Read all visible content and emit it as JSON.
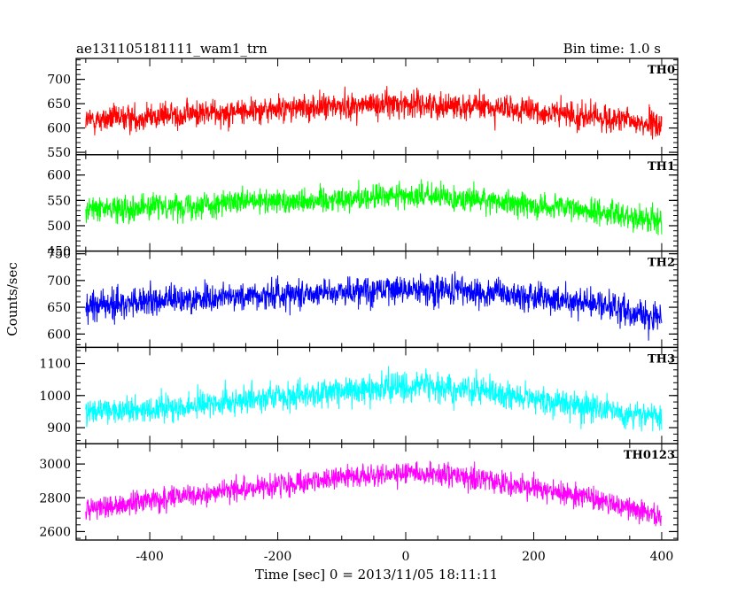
{
  "chart_data": {
    "type": "line",
    "title": "ae131105181111_wam1_trn",
    "subtitle": "Bin time: 1.0 s",
    "xlabel": "Time [sec] 0 = 2013/11/05 18:11:11",
    "ylabel": "Counts/sec",
    "xlim": [
      -515,
      425
    ],
    "x_ticks": [
      -400,
      -200,
      0,
      200,
      400
    ],
    "x_range_data": [
      -500,
      400
    ],
    "panels": [
      {
        "name": "TH0",
        "color": "#ff0000",
        "ylim": [
          545,
          743
        ],
        "y_ticks": [
          550,
          600,
          650,
          700
        ],
        "trend": {
          "x": [
            -500,
            -300,
            -100,
            0,
            100,
            300,
            400
          ],
          "y": [
            615,
            632,
            645,
            650,
            645,
            622,
            605
          ]
        },
        "noise": 35
      },
      {
        "name": "TH1",
        "color": "#00ff00",
        "ylim": [
          450,
          640
        ],
        "y_ticks": [
          450,
          500,
          550,
          600
        ],
        "trend": {
          "x": [
            -500,
            -300,
            -100,
            0,
            100,
            300,
            400
          ],
          "y": [
            532,
            543,
            553,
            560,
            553,
            528,
            510
          ]
        },
        "noise": 32
      },
      {
        "name": "TH2",
        "color": "#0000ff",
        "ylim": [
          575,
          755
        ],
        "y_ticks": [
          600,
          650,
          700,
          750
        ],
        "trend": {
          "x": [
            -500,
            -300,
            -100,
            0,
            100,
            300,
            400
          ],
          "y": [
            652,
            668,
            680,
            684,
            680,
            655,
            630
          ]
        },
        "noise": 35
      },
      {
        "name": "TH3",
        "color": "#00ffff",
        "ylim": [
          850,
          1150
        ],
        "y_ticks": [
          900,
          1000,
          1100
        ],
        "trend": {
          "x": [
            -500,
            -300,
            -100,
            0,
            100,
            300,
            400
          ],
          "y": [
            945,
            975,
            1015,
            1030,
            1020,
            960,
            925
          ]
        },
        "noise": 55
      },
      {
        "name": "TH0123",
        "color": "#ff00ff",
        "ylim": [
          2550,
          3120
        ],
        "y_ticks": [
          2600,
          2800,
          3000
        ],
        "trend": {
          "x": [
            -500,
            -300,
            -100,
            0,
            100,
            300,
            400
          ],
          "y": [
            2730,
            2830,
            2920,
            2945,
            2920,
            2790,
            2680
          ]
        },
        "noise": 85
      }
    ]
  }
}
